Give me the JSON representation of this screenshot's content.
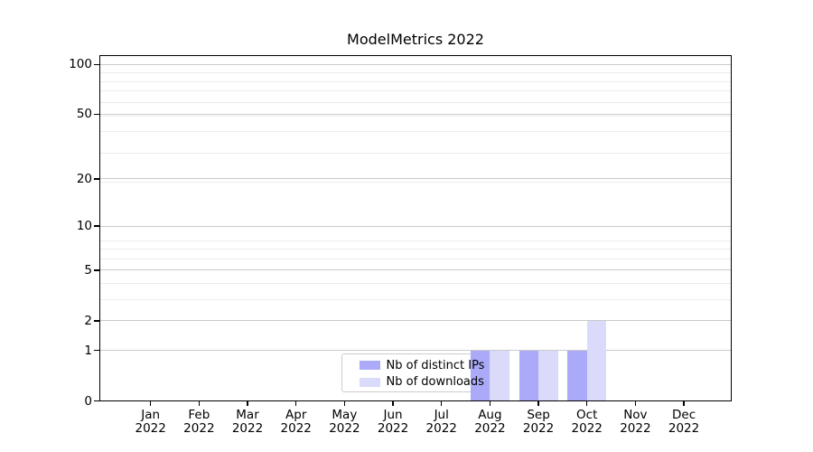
{
  "chart_data": {
    "type": "bar",
    "title": "ModelMetrics 2022",
    "x": {
      "months": [
        "Jan",
        "Feb",
        "Mar",
        "Apr",
        "May",
        "Jun",
        "Jul",
        "Aug",
        "Sep",
        "Oct",
        "Nov",
        "Dec"
      ],
      "year": "2022"
    },
    "y": {
      "scale": "log1p",
      "tick_values": [
        0,
        1,
        2,
        5,
        10,
        20,
        50,
        100
      ],
      "minor_gridline_values": [
        3,
        4,
        6,
        7,
        8,
        19,
        29,
        39,
        49,
        59,
        69,
        79,
        89
      ],
      "ylim": [
        0,
        113
      ],
      "grid": "on"
    },
    "series": [
      {
        "name": "Nb of distinct IPs",
        "color": "#abaaf9",
        "values": [
          0,
          0,
          0,
          0,
          0,
          0,
          0,
          1,
          1,
          1,
          0,
          0
        ]
      },
      {
        "name": "Nb of downloads",
        "color": "#dadafa",
        "values": [
          0,
          0,
          0,
          0,
          0,
          0,
          0,
          1,
          1,
          2,
          0,
          0
        ]
      }
    ],
    "legend": {
      "position": "lower center-left",
      "frame": "rounded light-gray"
    },
    "colors": {
      "background": "#ffffff",
      "grid_major": "#c9c9c9",
      "grid_minor": "#ececec",
      "axis": "#000000",
      "text": "#000000"
    }
  }
}
